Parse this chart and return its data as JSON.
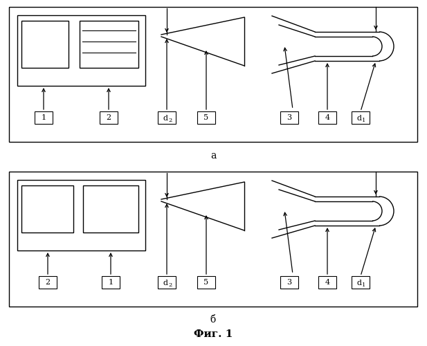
{
  "fig_width": 6.17,
  "fig_height": 5.0,
  "dpi": 100,
  "bg_color": "#ffffff",
  "label_a": "a",
  "label_b": "б",
  "label_fig": "Фиг. 1"
}
